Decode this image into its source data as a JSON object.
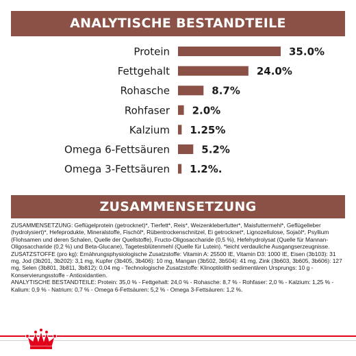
{
  "banner_top": "ANALYTISCHE BESTANDTEILE",
  "banner_bottom": "ZUSAMMENSETZUNG",
  "chart_data": {
    "type": "bar",
    "orientation": "horizontal",
    "categories": [
      "Protein",
      "Fettgehalt",
      "Rohasche",
      "Rohfaser",
      "Kalzium",
      "Omega 6-Fettsäuren",
      "Omega 3-Fettsäuren"
    ],
    "values": [
      35.0,
      24.0,
      8.7,
      2.0,
      1.25,
      5.2,
      1.2
    ],
    "value_labels": [
      "35.0%",
      "24.0%",
      "8.7%",
      "2.0%",
      "1.25%",
      "5.2%",
      "1.2%."
    ],
    "bar_color": "#8b5147",
    "title": "",
    "xlabel": "",
    "ylabel": "",
    "grid": false
  },
  "composition": {
    "zusammensetzung": "ZUSAMMENSETZUNG: Geflügelprotein (getrocknet)*, Tierfett*, Reis*, Weizenkleberfutter*, Maisfuttermehl*, Geflügelleber (hydrolysiert)*, Hefeprodukte, Mineralstoffe, Fischöl*, Rübentrockenschnitzel, Ei getrocknet*, Lignozellulose, Sojaöl*, Psyllium (Flohsamen und deren Schalen, Quelle der Quellstoffe), Fructo-Oligosaccharide (0,5 %), Hefehydrolysat (Quelle für Mannan-Oligosaccharide (0,2 %) und Beta-Glucane), Tagetesblütenmehl (Quelle für Lutein). *leicht verdauliche Ausgangserzeugnisse.",
    "zusatzstoffe": "ZUSATZSTOFFE (pro kg): Ernährungsphysiologische Zusatzstoffe: Vitamin A: 25500 IE, Vitamin D3: 1000 IE, Eisen (3b103): 31 mg, Jod (3b201, 3b202): 3,1 mg, Kupfer (3b405, 3b406): 10 mg, Mangan (3b502, 3b504): 41 mg, Zink (3b603, 3b605, 3b606): 127 mg, Selen (3b801, 3b811, 3b812): 0,04 mg - Technologische Zusatzstoffe: Klinoptilolith sedimentären Ursprungs: 10 g - Konservierungsstoffe - Antioxidantien.",
    "analytische": "ANALYTISCHE BESTANDTEILE: Protein: 35,0 % - Fettgehalt: 24,0 % - Rohasche: 8,7 % - Rohfaser: 2,0 % - Kalzium: 1,25 % - Kalium: 0,9 % - Natrium: 0,7 % - Omega 6-Fettsäuren: 5,2 % - Omega 3-Fettsäuren: 1,2 %."
  },
  "colors": {
    "brand_brown": "#8b5147",
    "brand_red": "#e2001a"
  },
  "footer_logo_icon": "crown-icon"
}
